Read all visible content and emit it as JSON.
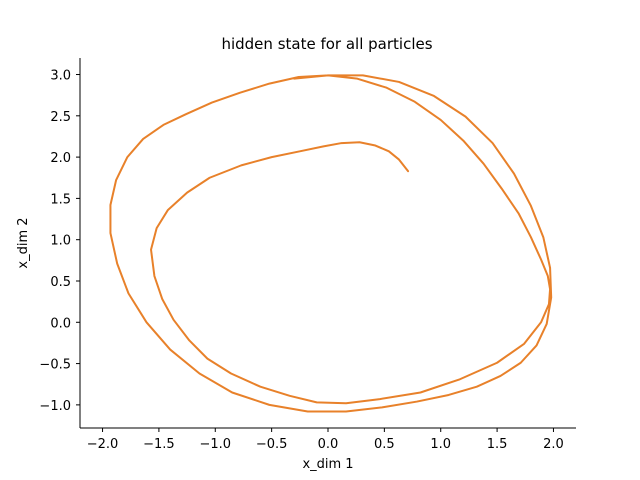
{
  "chart_data": {
    "type": "line",
    "title": "hidden state for all particles",
    "xlabel": "x_dim 1",
    "ylabel": "x_dim 2",
    "xlim": [
      -2.2,
      2.2
    ],
    "ylim": [
      -1.28,
      3.2
    ],
    "xticks": [
      -2.0,
      -1.5,
      -1.0,
      -0.5,
      0.0,
      0.5,
      1.0,
      1.5,
      2.0
    ],
    "xtick_labels": [
      "−2.0",
      "−1.5",
      "−1.0",
      "−0.5",
      "0.0",
      "0.5",
      "1.0",
      "1.5",
      "2.0"
    ],
    "yticks": [
      -1.0,
      -0.5,
      0.0,
      0.5,
      1.0,
      1.5,
      2.0,
      2.5,
      3.0
    ],
    "ytick_labels": [
      "−1.0",
      "−0.5",
      "0.0",
      "0.5",
      "1.0",
      "1.5",
      "2.0",
      "2.5",
      "3.0"
    ],
    "grid": false,
    "legend": "none",
    "spines": "left-bottom",
    "series": [
      {
        "color": "#e8812a",
        "x": [
          0.71,
          0.63,
          0.54,
          0.42,
          0.28,
          0.12,
          -0.04,
          -0.25,
          -0.5,
          -0.77,
          -1.05,
          -1.25,
          -1.42,
          -1.52,
          -1.57,
          -1.54,
          -1.47,
          -1.37,
          -1.23,
          -1.07,
          -0.86,
          -0.6,
          -0.34,
          -0.1,
          0.16,
          0.46,
          0.82,
          1.17,
          1.5,
          1.74,
          1.89,
          1.96,
          1.97,
          1.95,
          1.89,
          1.8,
          1.69,
          1.54,
          1.38,
          1.2,
          1.0,
          0.77,
          0.52,
          0.26,
          0.0,
          -0.26,
          -0.52,
          -0.78,
          -1.03,
          -1.26,
          -1.46,
          -1.64,
          -1.78,
          -1.88,
          -1.93,
          -1.93,
          -1.87,
          -1.77,
          -1.61,
          -1.4,
          -1.14,
          -0.85,
          -0.52,
          -0.18,
          0.16,
          0.48,
          0.79,
          1.07,
          1.32,
          1.53,
          1.71,
          1.85,
          1.94,
          1.98,
          1.97,
          1.91,
          1.8,
          1.65,
          1.46,
          1.22,
          0.94,
          0.63,
          0.31,
          0.0,
          -0.3
        ],
        "y": [
          1.83,
          1.97,
          2.07,
          2.14,
          2.18,
          2.17,
          2.13,
          2.07,
          2.0,
          1.9,
          1.75,
          1.57,
          1.36,
          1.14,
          0.88,
          0.56,
          0.28,
          0.03,
          -0.22,
          -0.44,
          -0.62,
          -0.78,
          -0.89,
          -0.97,
          -0.98,
          -0.93,
          -0.85,
          -0.69,
          -0.49,
          -0.26,
          0.0,
          0.22,
          0.4,
          0.56,
          0.76,
          1.03,
          1.32,
          1.62,
          1.92,
          2.2,
          2.45,
          2.67,
          2.84,
          2.95,
          2.99,
          2.97,
          2.89,
          2.78,
          2.66,
          2.52,
          2.39,
          2.22,
          2.0,
          1.72,
          1.42,
          1.08,
          0.71,
          0.35,
          0.0,
          -0.33,
          -0.62,
          -0.85,
          -1.0,
          -1.08,
          -1.08,
          -1.03,
          -0.96,
          -0.88,
          -0.78,
          -0.65,
          -0.49,
          -0.28,
          -0.02,
          0.3,
          0.66,
          1.03,
          1.41,
          1.8,
          2.17,
          2.49,
          2.74,
          2.91,
          2.99,
          2.99,
          2.95
        ]
      }
    ]
  }
}
